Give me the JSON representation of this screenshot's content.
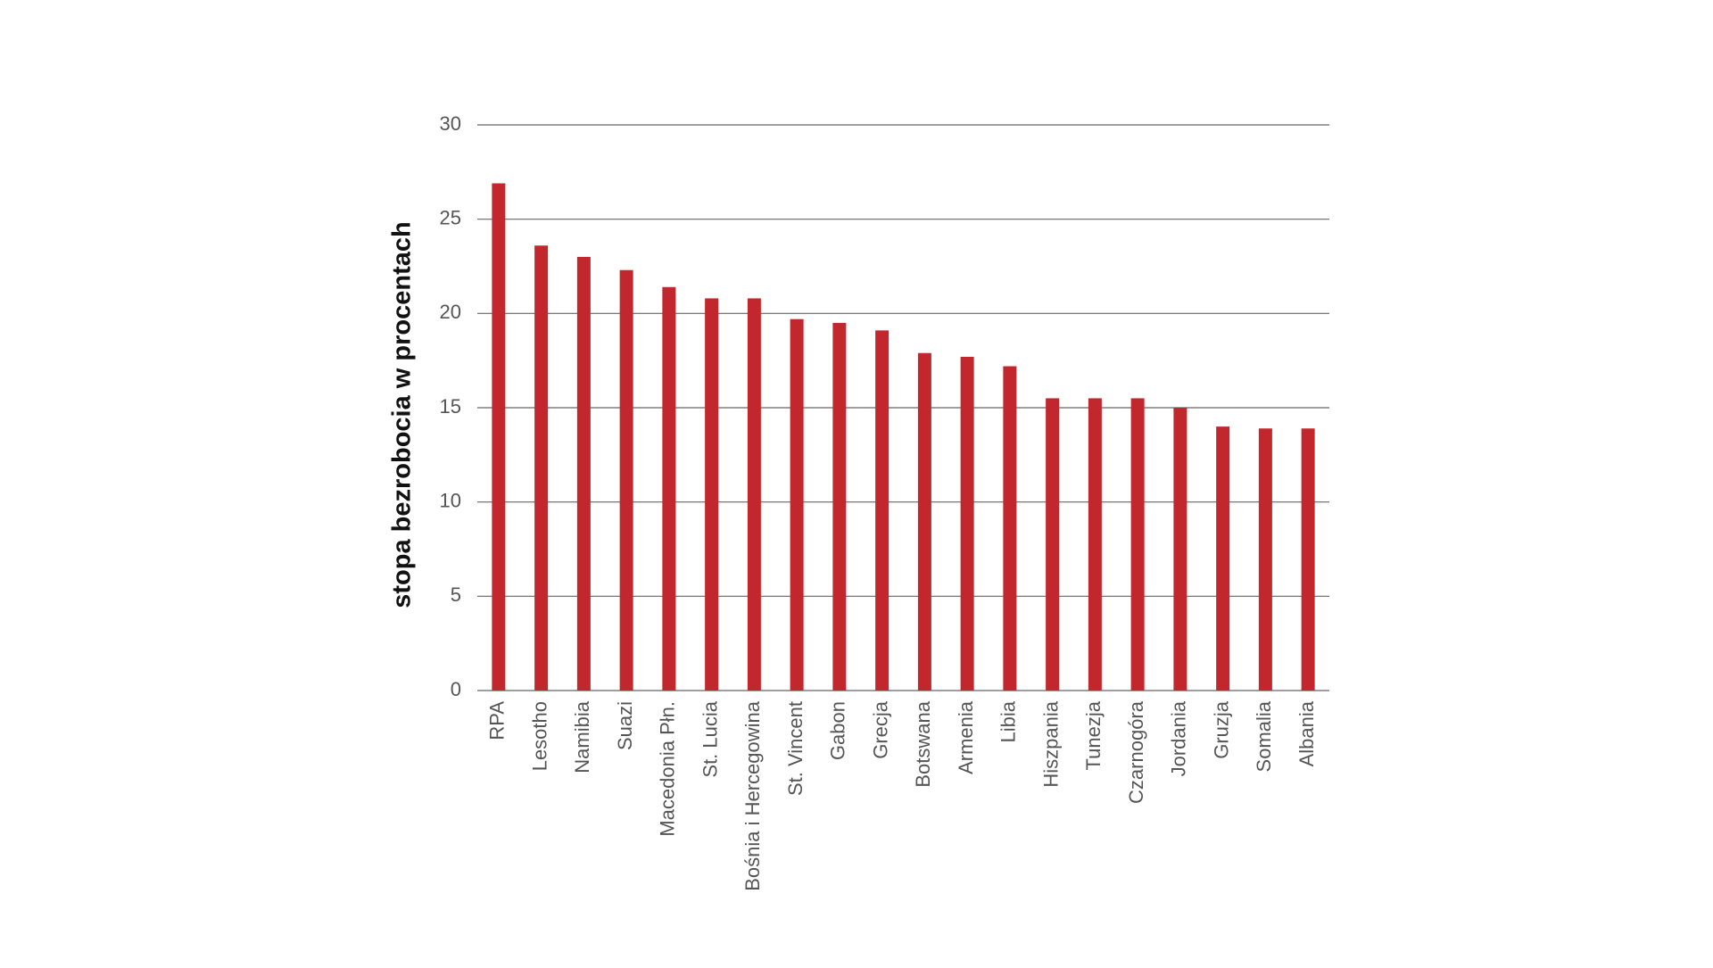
{
  "chart_data": {
    "type": "bar",
    "ylabel": "stopa bezrobocia w procentach",
    "categories": [
      "RPA",
      "Lesotho",
      "Namibia",
      "Suazi",
      "Macedonia Płn.",
      "St. Lucia",
      "Bośnia i Hercegowina",
      "St. Vincent",
      "Gabon",
      "Grecja",
      "Botswana",
      "Armenia",
      "Libia",
      "Hiszpania",
      "Tunezja",
      "Czarnogóra",
      "Jordania",
      "Gruzja",
      "Somalia",
      "Albania"
    ],
    "values": [
      26.9,
      23.6,
      23.0,
      22.3,
      21.4,
      20.8,
      20.8,
      19.7,
      19.5,
      19.1,
      17.9,
      17.7,
      17.2,
      15.5,
      15.5,
      15.5,
      15.0,
      14.0,
      13.9,
      13.9
    ],
    "color": "#c1272d",
    "ylim": [
      0,
      30
    ],
    "yticks": [
      0,
      5,
      10,
      15,
      20,
      25,
      30
    ],
    "grid": true
  }
}
